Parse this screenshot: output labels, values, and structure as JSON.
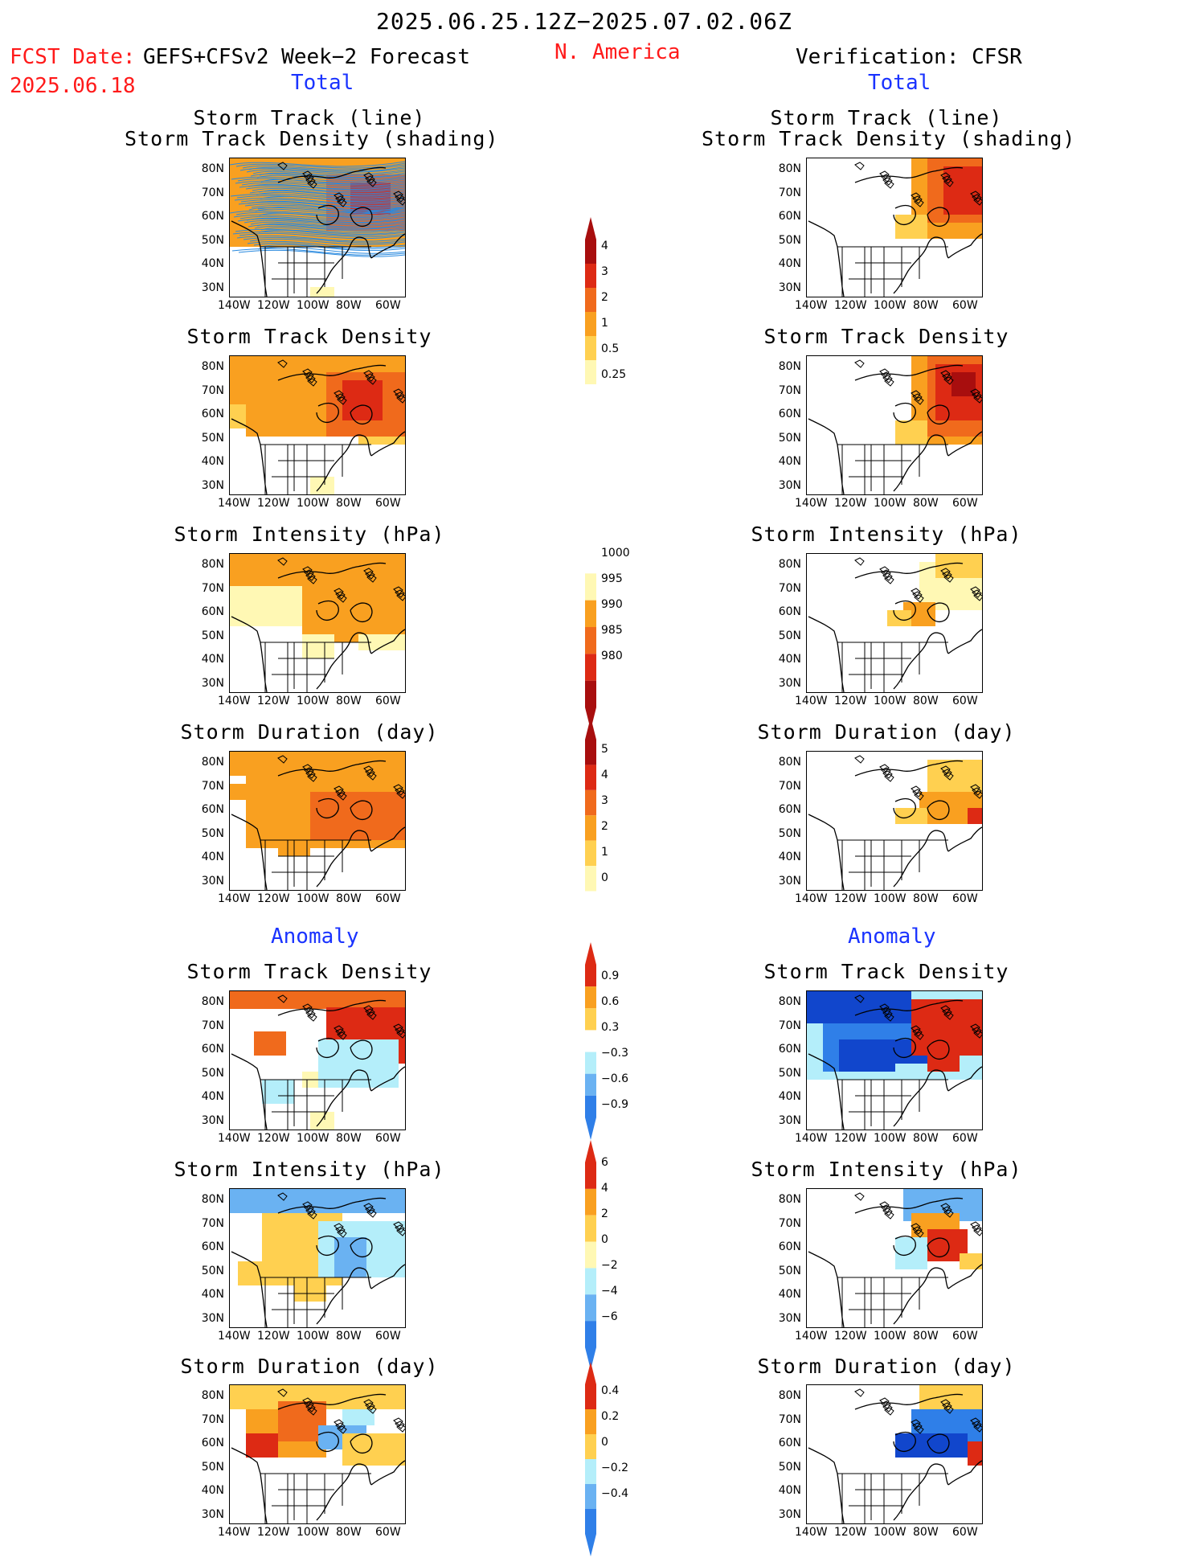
{
  "header": {
    "period": "2025.06.25.12Z−2025.07.02.06Z",
    "fcst_label": "FCST Date:",
    "fcst_date": "2025.06.18",
    "model": "GEFS+CFSv2 Week−2 Forecast",
    "region": "N. America",
    "verification": "Verification: CFSR",
    "total_left": "Total",
    "total_right": "Total",
    "anomaly_left": "Anomaly",
    "anomaly_right": "Anomaly"
  },
  "panels": {
    "track_line": [
      "Storm Track (line)",
      "Storm Track Density (shading)"
    ],
    "track_density": "Storm Track Density",
    "intensity": "Storm Intensity (hPa)",
    "duration": "Storm Duration (day)"
  },
  "axes": {
    "lat": [
      "80N",
      "70N",
      "60N",
      "50N",
      "40N",
      "30N"
    ],
    "lon": [
      "140W",
      "120W",
      "100W",
      "80W",
      "60W"
    ]
  },
  "colorbars": {
    "density_total": [
      "4",
      "3",
      "2",
      "1",
      "0.5",
      "0.25"
    ],
    "intensity_total": [
      "1000",
      "995",
      "990",
      "985",
      "980"
    ],
    "duration_total": [
      "5",
      "4",
      "3",
      "2",
      "1",
      "0"
    ],
    "density_anom": [
      "0.9",
      "0.6",
      "0.3",
      "−0.3",
      "−0.6",
      "−0.9"
    ],
    "intensity_anom": [
      "6",
      "4",
      "2",
      "0",
      "−2",
      "−4",
      "−6"
    ],
    "duration_anom": [
      "0.4",
      "0.2",
      "0",
      "−0.2",
      "−0.4"
    ]
  },
  "palette": {
    "light_yellow": "#fff8b4",
    "yellow": "#ffd050",
    "orange": "#f9a020",
    "dark_orange": "#f06a1c",
    "red": "#dd2a14",
    "dark_red": "#a80e0e",
    "light_blue": "#b4eefa",
    "mid_blue": "#6ab2f2",
    "blue": "#2f7fe8",
    "dark_blue": "#1146cc",
    "track_blue": "#2a8adf"
  }
}
